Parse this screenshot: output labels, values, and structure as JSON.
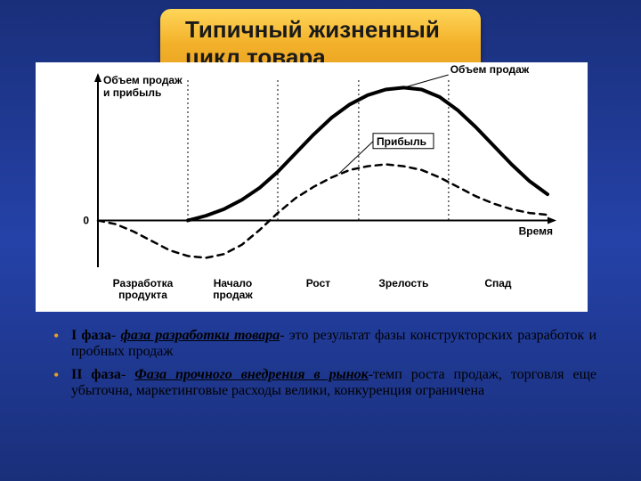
{
  "title": "Типичный жизненный цикл товара",
  "title_fontsize": 26,
  "title_color": "#1a1a1a",
  "chart": {
    "type": "line",
    "background_color": "#ffffff",
    "axis_color": "#000000",
    "axis_width": 2,
    "grid_color": "#000000",
    "grid_width": 1,
    "y_axis_label": "Объем продаж\nи прибыль",
    "x_axis_label": "Время",
    "zero_label": "0",
    "label_fontsize": 12,
    "xlim": [
      0,
      500
    ],
    "ylim": [
      -50,
      150
    ],
    "phase_boundaries": [
      0,
      100,
      200,
      290,
      390,
      500
    ],
    "phase_labels": [
      "Разработка\nпродукта",
      "Начало\nпродаж",
      "Рост",
      "Зрелость",
      "Спад"
    ],
    "phase_label_fontsize": 12,
    "series": [
      {
        "name": "Объем продаж",
        "stroke": "#000000",
        "stroke_width": 4,
        "dash": "none",
        "label_pos": [
          370,
          150
        ],
        "points": [
          [
            100,
            0
          ],
          [
            120,
            5
          ],
          [
            140,
            12
          ],
          [
            160,
            22
          ],
          [
            180,
            35
          ],
          [
            200,
            52
          ],
          [
            220,
            72
          ],
          [
            240,
            92
          ],
          [
            260,
            110
          ],
          [
            280,
            124
          ],
          [
            300,
            134
          ],
          [
            320,
            140
          ],
          [
            340,
            142
          ],
          [
            360,
            140
          ],
          [
            380,
            132
          ],
          [
            400,
            118
          ],
          [
            420,
            100
          ],
          [
            440,
            80
          ],
          [
            460,
            60
          ],
          [
            480,
            42
          ],
          [
            500,
            28
          ]
        ]
      },
      {
        "name": "Прибыль",
        "stroke": "#000000",
        "stroke_width": 2.5,
        "dash": "7 6",
        "label_pos": [
          300,
          75
        ],
        "points": [
          [
            0,
            0
          ],
          [
            20,
            -4
          ],
          [
            40,
            -12
          ],
          [
            60,
            -22
          ],
          [
            80,
            -32
          ],
          [
            100,
            -38
          ],
          [
            120,
            -40
          ],
          [
            140,
            -36
          ],
          [
            160,
            -26
          ],
          [
            180,
            -10
          ],
          [
            200,
            8
          ],
          [
            220,
            24
          ],
          [
            240,
            36
          ],
          [
            260,
            46
          ],
          [
            280,
            54
          ],
          [
            300,
            58
          ],
          [
            320,
            60
          ],
          [
            340,
            58
          ],
          [
            360,
            54
          ],
          [
            380,
            46
          ],
          [
            400,
            36
          ],
          [
            420,
            26
          ],
          [
            440,
            18
          ],
          [
            460,
            12
          ],
          [
            480,
            8
          ],
          [
            500,
            6
          ]
        ]
      }
    ]
  },
  "bullets": [
    {
      "lead": "I фаза",
      "underlined": "фаза разработки товара",
      "tail": " это результат фазы конструкторских разработок и пробных продаж"
    },
    {
      "lead": "II фаза",
      "underlined": "Фаза прочного внедрения в рынок",
      "tail": "темп роста продаж, торговля еще убыточна, маркетинговые расходы велики, конкуренция ограничена"
    }
  ],
  "bullet_color": "#e8a020",
  "text_color": "#000000",
  "bullet_fontsize": 16
}
